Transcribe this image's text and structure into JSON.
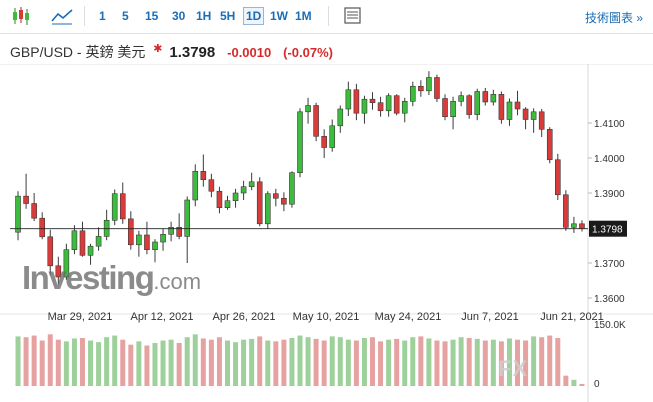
{
  "toolbar": {
    "candle_icon": "candlestick-chart-icon",
    "area_icon": "area-chart-icon",
    "timeframes": [
      "1",
      "5",
      "15",
      "30",
      "1H",
      "5H",
      "1D",
      "1W",
      "1M"
    ],
    "active_timeframe": "1D",
    "layout_icon": "chart-layout-icon",
    "tools_label": "技術圖表 »"
  },
  "quote": {
    "symbol": "GBP/USD - 英鎊 美元",
    "star": "✱",
    "last": "1.3798",
    "change": "-0.0010",
    "change_pct": "(-0.07%)"
  },
  "watermark": {
    "brand_main": "Investing",
    "brand_suffix": ".com",
    "fx_mark": "FX"
  },
  "colors": {
    "up": "#3dbb3d",
    "down": "#d93b3b",
    "vol_up": "#9dd09a",
    "vol_down": "#e6a1a1",
    "accent": "#1b6db5"
  },
  "chart_data": {
    "type": "candlestick",
    "price_axis": {
      "ticks": [
        "1.4100",
        "1.4000",
        "1.3900",
        "1.3700",
        "1.3600"
      ],
      "current_label": "1.3798"
    },
    "x_labels": [
      "Mar 29, 2021",
      "Apr 12, 2021",
      "Apr 26, 2021",
      "May 10, 2021",
      "May 24, 2021",
      "Jun 7, 2021",
      "Jun 21, 2021"
    ],
    "volume_axis": {
      "ticks": [
        "150.0K",
        "0"
      ]
    },
    "candles": [
      [
        1.3788,
        1.3905,
        1.3765,
        1.3891
      ],
      [
        1.3891,
        1.3955,
        1.3855,
        1.387
      ],
      [
        1.387,
        1.39,
        1.382,
        1.3828
      ],
      [
        1.3828,
        1.3845,
        1.3768,
        1.3775
      ],
      [
        1.3775,
        1.3795,
        1.3665,
        1.3692
      ],
      [
        1.3692,
        1.3718,
        1.3638,
        1.366
      ],
      [
        1.366,
        1.3755,
        1.3652,
        1.3738
      ],
      [
        1.3738,
        1.3808,
        1.3725,
        1.3792
      ],
      [
        1.3792,
        1.3818,
        1.3718,
        1.3722
      ],
      [
        1.3722,
        1.3755,
        1.3695,
        1.3748
      ],
      [
        1.3748,
        1.3802,
        1.3735,
        1.3776
      ],
      [
        1.3776,
        1.3852,
        1.3765,
        1.3822
      ],
      [
        1.3822,
        1.391,
        1.3808,
        1.3898
      ],
      [
        1.3898,
        1.393,
        1.3812,
        1.3826
      ],
      [
        1.3826,
        1.3848,
        1.3738,
        1.3752
      ],
      [
        1.3752,
        1.3792,
        1.3718,
        1.378
      ],
      [
        1.378,
        1.3818,
        1.3725,
        1.3738
      ],
      [
        1.3738,
        1.3768,
        1.3702,
        1.376
      ],
      [
        1.376,
        1.3798,
        1.3735,
        1.3782
      ],
      [
        1.3782,
        1.3818,
        1.3762,
        1.3802
      ],
      [
        1.3802,
        1.3842,
        1.3768,
        1.3776
      ],
      [
        1.3776,
        1.389,
        1.37,
        1.388
      ],
      [
        1.388,
        1.3982,
        1.3862,
        1.3962
      ],
      [
        1.3962,
        1.401,
        1.3918,
        1.3938
      ],
      [
        1.3938,
        1.3955,
        1.3888,
        1.3905
      ],
      [
        1.3905,
        1.3918,
        1.3842,
        1.3858
      ],
      [
        1.3858,
        1.3892,
        1.3852,
        1.3878
      ],
      [
        1.3878,
        1.3912,
        1.3858,
        1.39
      ],
      [
        1.39,
        1.3935,
        1.388,
        1.3918
      ],
      [
        1.3918,
        1.3958,
        1.3908,
        1.3932
      ],
      [
        1.3932,
        1.3945,
        1.3805,
        1.3812
      ],
      [
        1.3812,
        1.3905,
        1.3798,
        1.3898
      ],
      [
        1.3898,
        1.3912,
        1.3862,
        1.3885
      ],
      [
        1.3885,
        1.3902,
        1.3848,
        1.3868
      ],
      [
        1.3868,
        1.3962,
        1.3858,
        1.3958
      ],
      [
        1.3958,
        1.4142,
        1.3945,
        1.4132
      ],
      [
        1.4132,
        1.4172,
        1.4098,
        1.415
      ],
      [
        1.415,
        1.4158,
        1.4048,
        1.4062
      ],
      [
        1.4062,
        1.4082,
        1.4,
        1.403
      ],
      [
        1.403,
        1.411,
        1.4018,
        1.4092
      ],
      [
        1.4092,
        1.415,
        1.4072,
        1.414
      ],
      [
        1.414,
        1.4218,
        1.412,
        1.4195
      ],
      [
        1.4195,
        1.4212,
        1.4108,
        1.4128
      ],
      [
        1.4128,
        1.4178,
        1.4098,
        1.4168
      ],
      [
        1.4168,
        1.4188,
        1.4138,
        1.4158
      ],
      [
        1.4158,
        1.4175,
        1.4118,
        1.4135
      ],
      [
        1.4135,
        1.4185,
        1.4118,
        1.4178
      ],
      [
        1.4178,
        1.4182,
        1.4122,
        1.4128
      ],
      [
        1.4128,
        1.4172,
        1.4102,
        1.4162
      ],
      [
        1.4162,
        1.4218,
        1.4148,
        1.4205
      ],
      [
        1.4205,
        1.4222,
        1.4175,
        1.4192
      ],
      [
        1.4192,
        1.4248,
        1.418,
        1.423
      ],
      [
        1.423,
        1.4238,
        1.416,
        1.417
      ],
      [
        1.417,
        1.4182,
        1.4108,
        1.4118
      ],
      [
        1.4118,
        1.4175,
        1.4082,
        1.4162
      ],
      [
        1.4162,
        1.419,
        1.4148,
        1.4178
      ],
      [
        1.4178,
        1.4182,
        1.4112,
        1.4124
      ],
      [
        1.4124,
        1.4198,
        1.4108,
        1.419
      ],
      [
        1.419,
        1.42,
        1.415,
        1.416
      ],
      [
        1.416,
        1.4195,
        1.415,
        1.4182
      ],
      [
        1.4182,
        1.419,
        1.4098,
        1.411
      ],
      [
        1.411,
        1.417,
        1.4092,
        1.416
      ],
      [
        1.416,
        1.4192,
        1.4122,
        1.414
      ],
      [
        1.414,
        1.4145,
        1.4082,
        1.411
      ],
      [
        1.411,
        1.4142,
        1.4072,
        1.4132
      ],
      [
        1.4132,
        1.414,
        1.406,
        1.4082
      ],
      [
        1.4082,
        1.4088,
        1.3985,
        1.3995
      ],
      [
        1.3995,
        1.4012,
        1.388,
        1.3895
      ],
      [
        1.3895,
        1.3908,
        1.3792,
        1.3802
      ],
      [
        1.3802,
        1.3832,
        1.3786,
        1.3812
      ],
      [
        1.3812,
        1.3822,
        1.379,
        1.3798
      ]
    ],
    "volume": [
      120,
      118,
      122,
      110,
      125,
      112,
      108,
      115,
      116,
      110,
      106,
      118,
      122,
      112,
      100,
      108,
      98,
      104,
      110,
      112,
      104,
      118,
      125,
      115,
      112,
      118,
      110,
      106,
      112,
      114,
      120,
      110,
      108,
      112,
      116,
      122,
      118,
      114,
      110,
      120,
      118,
      112,
      110,
      116,
      118,
      108,
      112,
      114,
      110,
      118,
      120,
      115,
      110,
      108,
      112,
      118,
      116,
      114,
      110,
      112,
      108,
      115,
      112,
      110,
      120,
      118,
      122,
      116,
      25,
      15,
      5
    ]
  }
}
